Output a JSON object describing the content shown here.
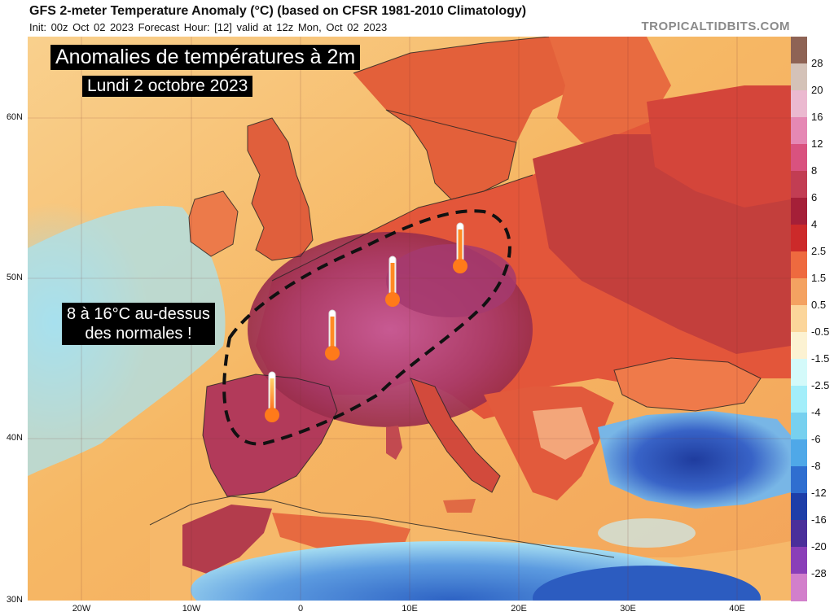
{
  "header": {
    "title": "GFS 2-meter Temperature Anomaly (°C) (based on CFSR 1981-2010 Climatology)",
    "subtitle": "Init: 00z Oct 02 2023   Forecast Hour: [12]   valid at 12z Mon, Oct 02 2023",
    "brand": "TROPICALTIDBITS.COM"
  },
  "overlay": {
    "title": "Anomalies de températures à 2m",
    "date": "Lundi 2 octobre 2023",
    "note_line1": "8 à 16°C au-dessus",
    "note_line2": "des normales !"
  },
  "axes": {
    "lat_labels": [
      "60N",
      "50N",
      "40N",
      "30N"
    ],
    "lon_labels": [
      "20W",
      "10W",
      "0",
      "10E",
      "20E",
      "30E",
      "40E"
    ]
  },
  "colorbar": {
    "labels": [
      "28",
      "20",
      "16",
      "12",
      "8",
      "6",
      "4",
      "2.5",
      "1.5",
      "0.5",
      "-0.5",
      "-1.5",
      "-2.5",
      "-4",
      "-6",
      "-8",
      "-12",
      "-16",
      "-20",
      "-28"
    ],
    "colors": [
      "#8e6355",
      "#d4c2b8",
      "#ebb9d0",
      "#e588b4",
      "#d9527f",
      "#c23d53",
      "#a51f38",
      "#cc2a2a",
      "#ee6a3f",
      "#f4a261",
      "#fbd59a",
      "#fcf2d2",
      "#d4fafa",
      "#a3eefa",
      "#77d0ef",
      "#4fa8e8",
      "#2f6ed0",
      "#1e3ea8",
      "#4a2f9a",
      "#8a3fb8",
      "#d27fcb"
    ]
  },
  "map_colors": {
    "ocean_warm": "#f7c37a",
    "ocean_cool": "#bfe9f0",
    "land_warm": "#ea6a3e",
    "land_hot": "#c2324a",
    "land_very_hot": "#a52a5a",
    "anomaly_core": "#b04778",
    "cold_turkey": "#2d4fb5",
    "cool_sea": "#7fc4ea",
    "thermometer": "#ff7a1a"
  }
}
